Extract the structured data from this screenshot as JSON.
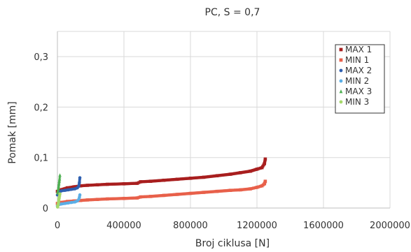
{
  "chart_data": {
    "type": "scatter",
    "title": "PC, S = 0,7",
    "xlabel": "Broj ciklusa [N]",
    "ylabel": "Pomak [mm]",
    "xlim": [
      0,
      2000000
    ],
    "ylim": [
      0,
      0.35
    ],
    "x_ticks": [
      0,
      400000,
      800000,
      1200000,
      1600000,
      2000000
    ],
    "x_tick_labels": [
      "0",
      "400000",
      "800000",
      "1200000",
      "1600000",
      "2000000"
    ],
    "y_ticks": [
      0,
      0.1,
      0.2,
      0.3
    ],
    "y_tick_labels": [
      "0",
      "0,1",
      "0,2",
      "0,3"
    ],
    "grid": true,
    "legend_position": "top-right",
    "series": [
      {
        "name": "MAX 1",
        "color": "#a81e1e",
        "x": [
          0,
          20000,
          60000,
          100000,
          140000,
          180000,
          240000,
          300000,
          400000,
          480000,
          500000,
          560000,
          640000,
          720000,
          800000,
          880000,
          960000,
          1040000,
          1100000,
          1160000,
          1200000,
          1230000,
          1245000,
          1250000
        ],
        "y": [
          0.033,
          0.036,
          0.04,
          0.042,
          0.044,
          0.045,
          0.046,
          0.047,
          0.048,
          0.049,
          0.052,
          0.053,
          0.055,
          0.057,
          0.059,
          0.061,
          0.064,
          0.067,
          0.07,
          0.073,
          0.077,
          0.08,
          0.088,
          0.097
        ]
      },
      {
        "name": "MIN  1",
        "color": "#e8604a",
        "x": [
          0,
          20000,
          60000,
          100000,
          140000,
          180000,
          240000,
          300000,
          400000,
          480000,
          500000,
          560000,
          640000,
          720000,
          800000,
          880000,
          960000,
          1040000,
          1100000,
          1160000,
          1200000,
          1230000,
          1245000,
          1250000
        ],
        "y": [
          0.009,
          0.011,
          0.013,
          0.014,
          0.015,
          0.016,
          0.017,
          0.018,
          0.019,
          0.02,
          0.022,
          0.023,
          0.025,
          0.027,
          0.029,
          0.031,
          0.033,
          0.035,
          0.036,
          0.038,
          0.041,
          0.044,
          0.048,
          0.053
        ]
      },
      {
        "name": "MAX 2",
        "color": "#2e5fb0",
        "x": [
          0,
          10000,
          25000,
          45000,
          65000,
          85000,
          105000,
          120000,
          128000,
          132000,
          135000
        ],
        "y": [
          0.026,
          0.032,
          0.034,
          0.035,
          0.036,
          0.037,
          0.038,
          0.04,
          0.043,
          0.05,
          0.06
        ]
      },
      {
        "name": "MIN  2",
        "color": "#5aaee6",
        "x": [
          0,
          10000,
          25000,
          45000,
          65000,
          85000,
          105000,
          120000,
          128000,
          132000,
          135000
        ],
        "y": [
          0.004,
          0.007,
          0.008,
          0.009,
          0.01,
          0.011,
          0.012,
          0.014,
          0.017,
          0.021,
          0.026
        ]
      },
      {
        "name": "MAX 3",
        "color": "#4caf50",
        "x": [
          1000,
          3000,
          5000,
          7000,
          9000,
          11000,
          13000,
          15000
        ],
        "y": [
          0.03,
          0.034,
          0.038,
          0.043,
          0.048,
          0.053,
          0.058,
          0.065
        ]
      },
      {
        "name": "MIN  3",
        "color": "#a5d86a",
        "x": [
          1000,
          3000,
          5000,
          7000,
          9000,
          11000,
          13000,
          15000
        ],
        "y": [
          0.002,
          0.005,
          0.008,
          0.012,
          0.016,
          0.02,
          0.024,
          0.028
        ]
      }
    ]
  }
}
